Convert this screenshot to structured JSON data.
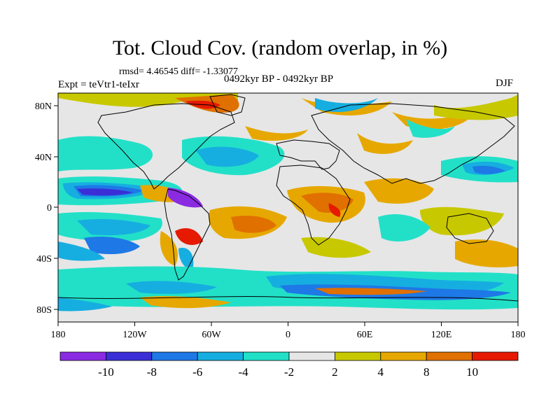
{
  "title": "Tot. Cloud Cov. (random overlap, in %)",
  "stats": "rmsd= 4.46545 diff= -1.33077",
  "experiment": "Expt = teVtr1-teIxr",
  "period": "0492kyr BP - 0492kyr BP",
  "season": "DJF",
  "map": {
    "projection": "cylindrical equidistant",
    "lon_range": [
      -180,
      180
    ],
    "lat_range": [
      -90,
      90
    ],
    "x_ticks": [
      "180",
      "120W",
      "60W",
      "0",
      "60E",
      "120E",
      "180"
    ],
    "y_ticks": [
      "80N",
      "40N",
      "0",
      "40S",
      "80S"
    ],
    "field": "difference in total cloud cover (%)"
  },
  "colorbar": {
    "labels": [
      "-10",
      "-8",
      "-6",
      "-4",
      "-2",
      "2",
      "4",
      "8",
      "10"
    ],
    "colors": [
      "#8a2be2",
      "#3a2fd6",
      "#1e78e6",
      "#16aee0",
      "#22e0c8",
      "#e6e6e6",
      "#c8c800",
      "#e6a800",
      "#e07000",
      "#e61a00"
    ]
  }
}
